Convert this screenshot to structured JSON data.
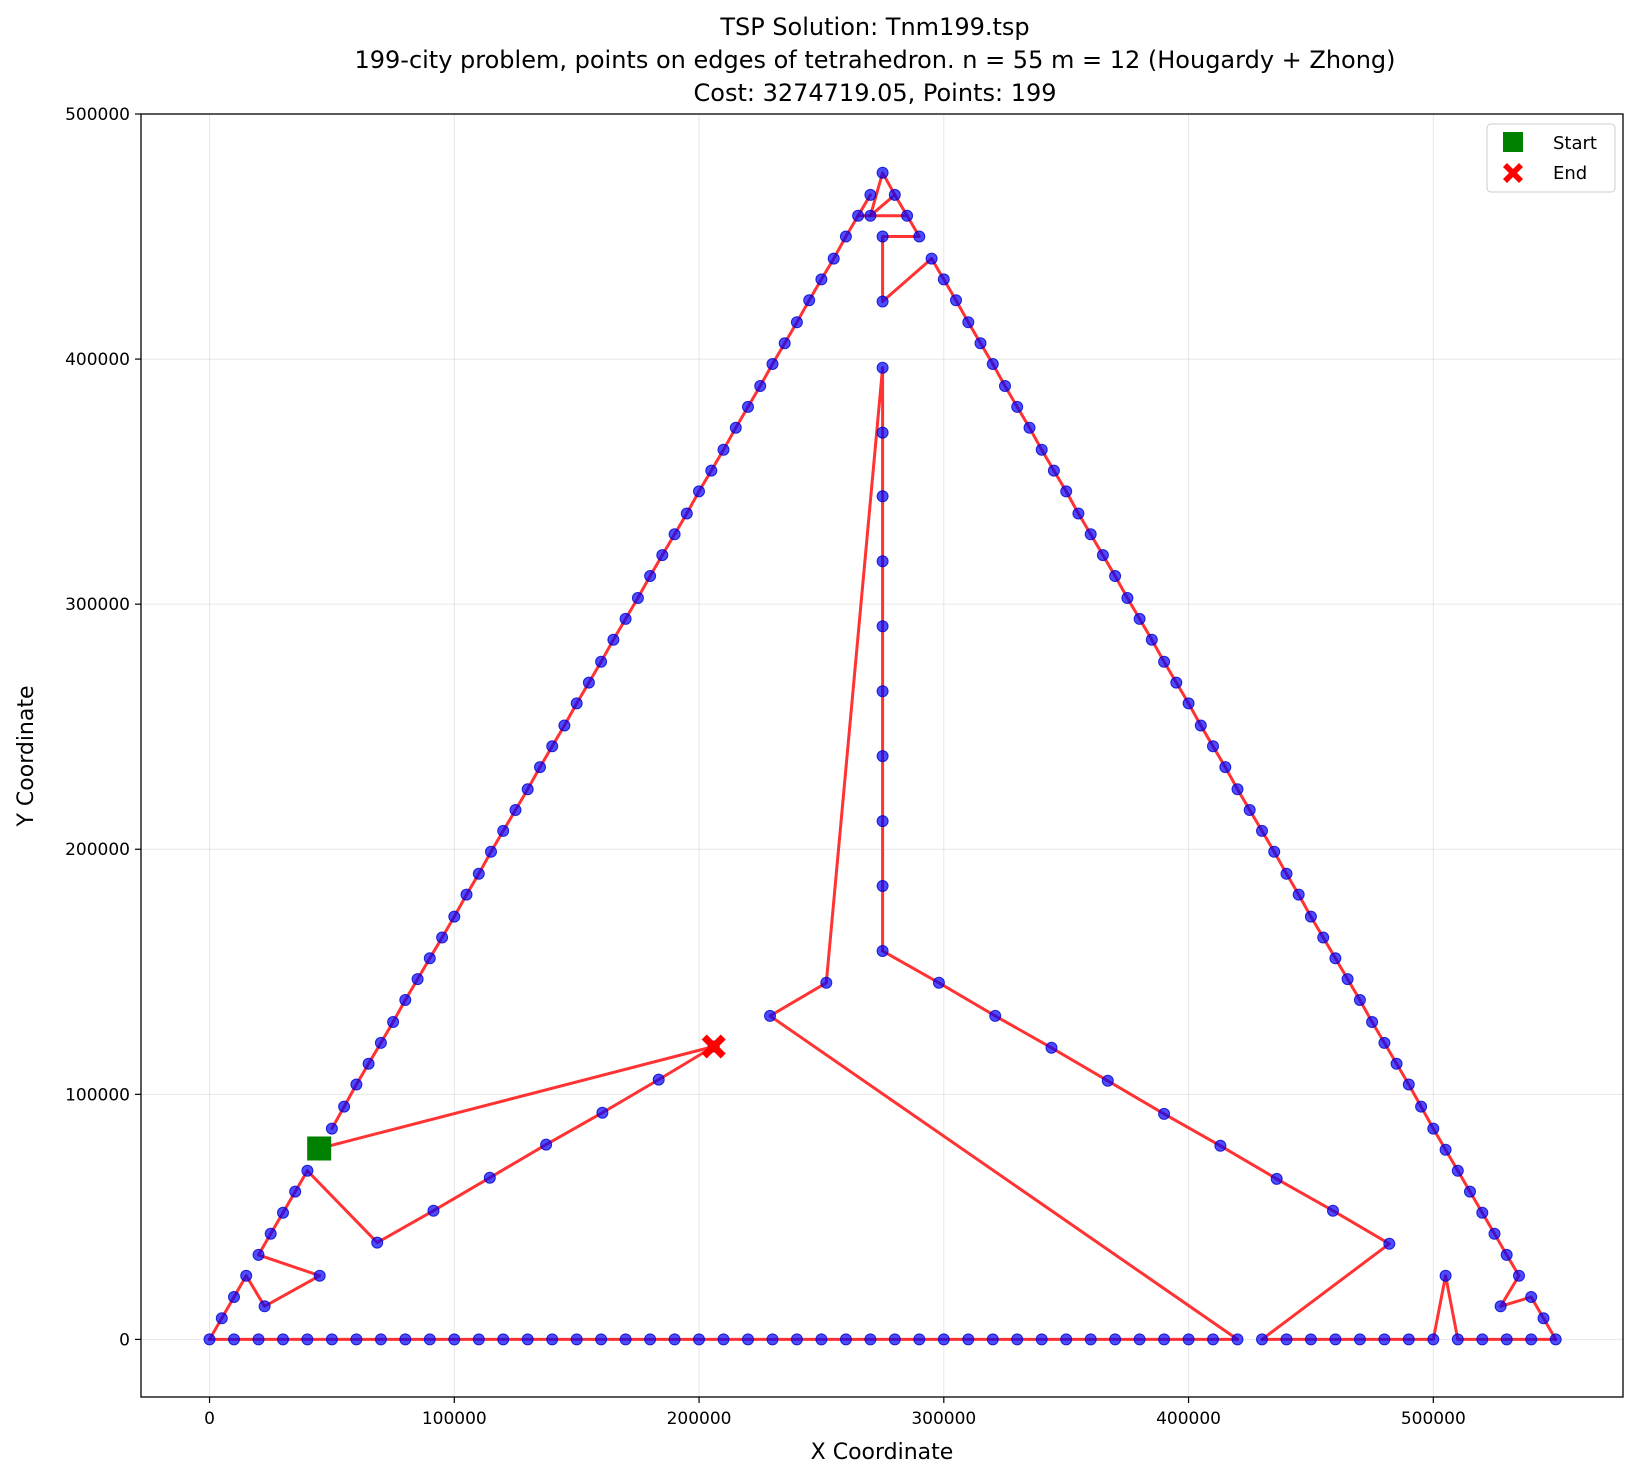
{
  "chart_data": {
    "type": "line",
    "title_lines": [
      "TSP Solution: Tnm199.tsp",
      "199-city problem, points on edges of tetrahedron. n = 55  m = 12 (Hougardy + Zhong)",
      "Cost: 3274719.05, Points: 199"
    ],
    "xlabel": "X Coordinate",
    "ylabel": "Y Coordinate",
    "xlim": [
      -28000,
      577500
    ],
    "ylim": [
      -23500,
      500000
    ],
    "xticks": [
      0,
      100000,
      200000,
      300000,
      400000,
      500000
    ],
    "yticks": [
      0,
      100000,
      200000,
      300000,
      400000,
      500000
    ],
    "grid": true,
    "legend_position": "top-right",
    "legend": [
      {
        "label": "Start",
        "marker": "square",
        "color": "#008000"
      },
      {
        "label": "End",
        "marker": "x",
        "color": "#ff0000"
      }
    ],
    "colors": {
      "route": "#ff0000",
      "cities": "#0000ff",
      "start": "#008000",
      "end": "#ff0000"
    },
    "tour_segments": [
      [
        [
          44800,
          77900
        ],
        [
          206000,
          119500
        ]
      ],
      [
        [
          206000,
          119500
        ],
        [
          183500,
          106000
        ],
        [
          160500,
          92500
        ],
        [
          137500,
          79500
        ],
        [
          114500,
          66000
        ],
        [
          91500,
          52500
        ],
        [
          68500,
          39500
        ],
        [
          40000,
          68800
        ]
      ],
      [
        [
          40000,
          68800
        ],
        [
          35000,
          60300
        ],
        [
          30000,
          51700
        ],
        [
          25000,
          43100
        ],
        [
          20000,
          34500
        ],
        [
          45000,
          26000
        ],
        [
          22500,
          13500
        ],
        [
          15000,
          26000
        ],
        [
          10000,
          17300
        ],
        [
          5000,
          8600
        ],
        [
          0,
          0
        ]
      ],
      [
        [
          0,
          0
        ],
        [
          10000,
          0
        ],
        [
          20000,
          0
        ],
        [
          30000,
          0
        ],
        [
          40000,
          0
        ],
        [
          50000,
          0
        ],
        [
          60000,
          0
        ],
        [
          70000,
          0
        ],
        [
          80000,
          0
        ],
        [
          90000,
          0
        ],
        [
          100000,
          0
        ],
        [
          110000,
          0
        ],
        [
          120000,
          0
        ],
        [
          130000,
          0
        ],
        [
          140000,
          0
        ],
        [
          150000,
          0
        ],
        [
          160000,
          0
        ],
        [
          170000,
          0
        ],
        [
          180000,
          0
        ],
        [
          190000,
          0
        ],
        [
          200000,
          0
        ],
        [
          210000,
          0
        ],
        [
          220000,
          0
        ],
        [
          230000,
          0
        ],
        [
          240000,
          0
        ],
        [
          250000,
          0
        ],
        [
          260000,
          0
        ],
        [
          270000,
          0
        ],
        [
          280000,
          0
        ],
        [
          290000,
          0
        ],
        [
          300000,
          0
        ],
        [
          310000,
          0
        ],
        [
          320000,
          0
        ],
        [
          330000,
          0
        ],
        [
          340000,
          0
        ],
        [
          350000,
          0
        ],
        [
          360000,
          0
        ],
        [
          370000,
          0
        ],
        [
          380000,
          0
        ],
        [
          390000,
          0
        ],
        [
          400000,
          0
        ],
        [
          410000,
          0
        ],
        [
          420000,
          0
        ]
      ],
      [
        [
          420000,
          0
        ],
        [
          229000,
          132000
        ],
        [
          252000,
          145500
        ],
        [
          275000,
          396500
        ],
        [
          275000,
          370000
        ],
        [
          275000,
          344000
        ],
        [
          275000,
          317500
        ],
        [
          275000,
          291000
        ],
        [
          275000,
          264500
        ],
        [
          275000,
          238000
        ],
        [
          275000,
          211500
        ],
        [
          275000,
          185000
        ],
        [
          275000,
          158500
        ]
      ],
      [
        [
          275000,
          158500
        ],
        [
          298000,
          145500
        ],
        [
          321000,
          132000
        ],
        [
          344000,
          119000
        ],
        [
          367000,
          105500
        ],
        [
          390000,
          92000
        ],
        [
          413000,
          79000
        ],
        [
          436000,
          65500
        ],
        [
          459000,
          52500
        ],
        [
          482000,
          39000
        ],
        [
          430000,
          0
        ]
      ],
      [
        [
          430000,
          0
        ],
        [
          440000,
          0
        ],
        [
          450000,
          0
        ],
        [
          460000,
          0
        ],
        [
          470000,
          0
        ],
        [
          480000,
          0
        ],
        [
          490000,
          0
        ],
        [
          500000,
          0
        ],
        [
          505000,
          26000
        ],
        [
          510000,
          0
        ],
        [
          520000,
          0
        ],
        [
          530000,
          0
        ],
        [
          540000,
          0
        ],
        [
          550000,
          0
        ]
      ],
      [
        [
          550000,
          0
        ],
        [
          545000,
          8600
        ],
        [
          540000,
          17300
        ],
        [
          527500,
          13500
        ],
        [
          535000,
          26000
        ],
        [
          530000,
          34500
        ],
        [
          525000,
          43100
        ],
        [
          520000,
          51700
        ],
        [
          515000,
          60300
        ],
        [
          510000,
          68800
        ],
        [
          505000,
          77400
        ],
        [
          500000,
          86000
        ],
        [
          495000,
          95000
        ],
        [
          490000,
          104000
        ],
        [
          485000,
          112500
        ],
        [
          480000,
          121000
        ],
        [
          475000,
          129500
        ],
        [
          470000,
          138500
        ],
        [
          465000,
          147000
        ],
        [
          460000,
          155500
        ],
        [
          455000,
          164000
        ],
        [
          450000,
          172500
        ],
        [
          445000,
          181500
        ],
        [
          440000,
          190000
        ],
        [
          435000,
          199000
        ],
        [
          430000,
          207500
        ],
        [
          425000,
          216000
        ],
        [
          420000,
          224500
        ],
        [
          415000,
          233500
        ],
        [
          410000,
          242000
        ],
        [
          405000,
          250500
        ],
        [
          400000,
          259500
        ],
        [
          395000,
          268000
        ],
        [
          390000,
          276500
        ],
        [
          385000,
          285500
        ],
        [
          380000,
          294000
        ],
        [
          375000,
          302500
        ],
        [
          370000,
          311500
        ],
        [
          365000,
          320000
        ],
        [
          360000,
          328500
        ],
        [
          355000,
          337000
        ],
        [
          350000,
          346000
        ],
        [
          345000,
          354500
        ],
        [
          340000,
          363000
        ],
        [
          335000,
          372000
        ],
        [
          330000,
          380500
        ],
        [
          325000,
          389000
        ],
        [
          320000,
          398000
        ],
        [
          315000,
          406500
        ],
        [
          310000,
          415000
        ],
        [
          305000,
          424000
        ],
        [
          300000,
          432500
        ],
        [
          295000,
          441000
        ]
      ],
      [
        [
          295000,
          441000
        ],
        [
          275000,
          423500
        ],
        [
          275000,
          450000
        ],
        [
          290000,
          450000
        ],
        [
          285000,
          458500
        ],
        [
          280000,
          467000
        ],
        [
          270000,
          458500
        ],
        [
          285000,
          458500
        ]
      ],
      [
        [
          270000,
          458500
        ],
        [
          275000,
          476000
        ],
        [
          280000,
          467000
        ]
      ],
      [
        [
          270000,
          458500
        ],
        [
          265000,
          458500
        ],
        [
          270000,
          467000
        ]
      ],
      [
        [
          265000,
          458500
        ],
        [
          260000,
          450000
        ],
        [
          255000,
          441000
        ],
        [
          250000,
          432500
        ],
        [
          245000,
          424000
        ],
        [
          240000,
          415000
        ],
        [
          235000,
          406500
        ],
        [
          230000,
          398000
        ],
        [
          225000,
          389000
        ],
        [
          220000,
          380500
        ],
        [
          215000,
          372000
        ],
        [
          210000,
          363000
        ],
        [
          205000,
          354500
        ],
        [
          200000,
          346000
        ],
        [
          195000,
          337000
        ],
        [
          190000,
          328500
        ],
        [
          185000,
          320000
        ],
        [
          180000,
          311500
        ],
        [
          175000,
          302500
        ],
        [
          170000,
          294000
        ],
        [
          165000,
          285500
        ],
        [
          160000,
          276500
        ],
        [
          155000,
          268000
        ],
        [
          150000,
          259500
        ],
        [
          145000,
          250500
        ],
        [
          140000,
          242000
        ],
        [
          135000,
          233500
        ],
        [
          130000,
          224500
        ],
        [
          125000,
          216000
        ],
        [
          120000,
          207500
        ],
        [
          115000,
          199000
        ],
        [
          110000,
          190000
        ],
        [
          105000,
          181500
        ],
        [
          100000,
          172500
        ],
        [
          95000,
          164000
        ],
        [
          90000,
          155500
        ],
        [
          85000,
          147000
        ],
        [
          80000,
          138500
        ],
        [
          75000,
          129500
        ],
        [
          70000,
          121000
        ],
        [
          65000,
          112500
        ],
        [
          60000,
          104000
        ],
        [
          55000,
          95000
        ],
        [
          50000,
          86000
        ]
      ]
    ],
    "start": [
      44800,
      77900
    ],
    "end": [
      206000,
      119500
    ]
  }
}
